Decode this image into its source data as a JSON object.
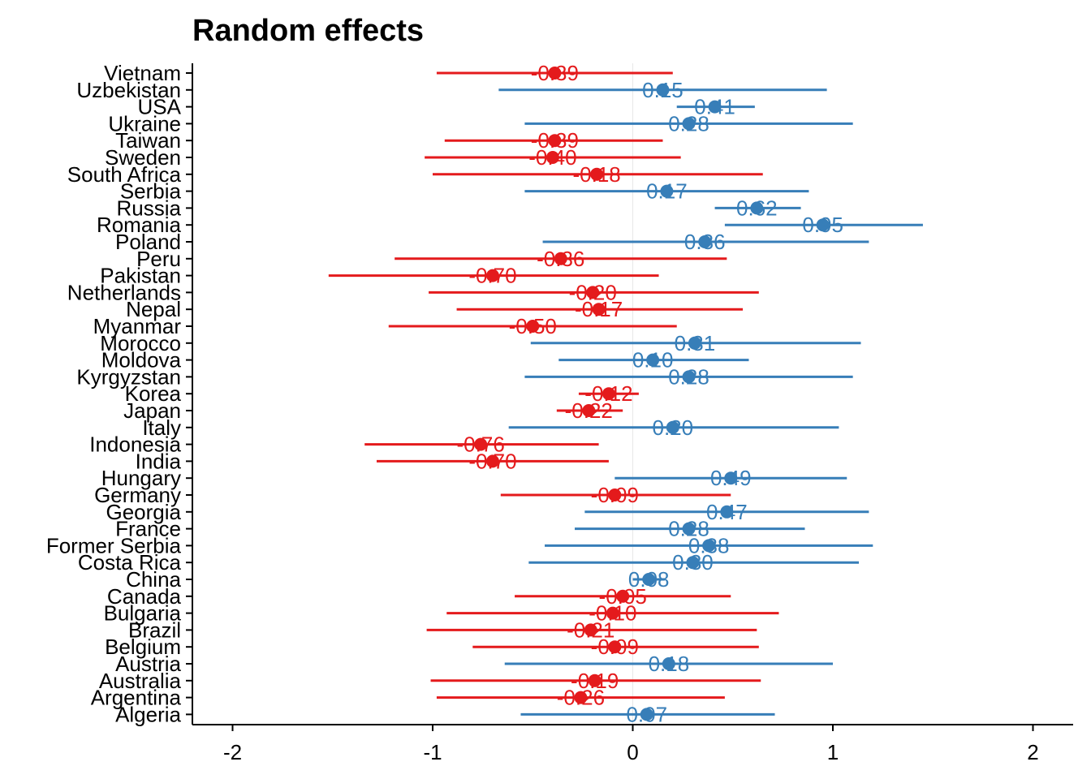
{
  "chart_data": {
    "type": "forest",
    "title": "Random effects",
    "xlabel": "",
    "ylabel": "",
    "xlim": [
      -2.2,
      2.2
    ],
    "x_ticks": [
      -2,
      -1,
      0,
      1,
      2
    ],
    "x_tick_labels": [
      "-2",
      "-1",
      "0",
      "1",
      "2"
    ],
    "colors": {
      "negative": "#e41a1c",
      "positive": "#377eb8",
      "zero_line": "#e8e8e8",
      "axis": "#000000"
    },
    "rows": [
      {
        "country": "Vietnam",
        "estimate": -0.39,
        "lower": -0.98,
        "upper": 0.2,
        "label": "-0.39"
      },
      {
        "country": "Uzbekistan",
        "estimate": 0.15,
        "lower": -0.67,
        "upper": 0.97,
        "label": "0.15"
      },
      {
        "country": "USA",
        "estimate": 0.41,
        "lower": 0.22,
        "upper": 0.61,
        "label": "0.41"
      },
      {
        "country": "Ukraine",
        "estimate": 0.28,
        "lower": -0.54,
        "upper": 1.1,
        "label": "0.28"
      },
      {
        "country": "Taiwan",
        "estimate": -0.39,
        "lower": -0.94,
        "upper": 0.15,
        "label": "-0.39"
      },
      {
        "country": "Sweden",
        "estimate": -0.4,
        "lower": -1.04,
        "upper": 0.24,
        "label": "-0.40"
      },
      {
        "country": "South Africa",
        "estimate": -0.18,
        "lower": -1.0,
        "upper": 0.65,
        "label": "-0.18"
      },
      {
        "country": "Serbia",
        "estimate": 0.17,
        "lower": -0.54,
        "upper": 0.88,
        "label": "0.17"
      },
      {
        "country": "Russia",
        "estimate": 0.62,
        "lower": 0.41,
        "upper": 0.84,
        "label": "0.62"
      },
      {
        "country": "Romania",
        "estimate": 0.95,
        "lower": 0.46,
        "upper": 1.45,
        "label": "0.95"
      },
      {
        "country": "Poland",
        "estimate": 0.36,
        "lower": -0.45,
        "upper": 1.18,
        "label": "0.36"
      },
      {
        "country": "Peru",
        "estimate": -0.36,
        "lower": -1.19,
        "upper": 0.47,
        "label": "-0.36"
      },
      {
        "country": "Pakistan",
        "estimate": -0.7,
        "lower": -1.52,
        "upper": 0.13,
        "label": "-0.70"
      },
      {
        "country": "Netherlands",
        "estimate": -0.2,
        "lower": -1.02,
        "upper": 0.63,
        "label": "-0.20"
      },
      {
        "country": "Nepal",
        "estimate": -0.17,
        "lower": -0.88,
        "upper": 0.55,
        "label": "-0.17"
      },
      {
        "country": "Myanmar",
        "estimate": -0.5,
        "lower": -1.22,
        "upper": 0.22,
        "label": "-0.50"
      },
      {
        "country": "Morocco",
        "estimate": 0.31,
        "lower": -0.51,
        "upper": 1.14,
        "label": "0.31"
      },
      {
        "country": "Moldova",
        "estimate": 0.1,
        "lower": -0.37,
        "upper": 0.58,
        "label": "0.10"
      },
      {
        "country": "Kyrgyzstan",
        "estimate": 0.28,
        "lower": -0.54,
        "upper": 1.1,
        "label": "0.28"
      },
      {
        "country": "Korea",
        "estimate": -0.12,
        "lower": -0.27,
        "upper": 0.03,
        "label": "-0.12"
      },
      {
        "country": "Japan",
        "estimate": -0.22,
        "lower": -0.38,
        "upper": -0.05,
        "label": "-0.22"
      },
      {
        "country": "Italy",
        "estimate": 0.2,
        "lower": -0.62,
        "upper": 1.03,
        "label": "0.20"
      },
      {
        "country": "Indonesia",
        "estimate": -0.76,
        "lower": -1.34,
        "upper": -0.17,
        "label": "-0.76"
      },
      {
        "country": "India",
        "estimate": -0.7,
        "lower": -1.28,
        "upper": -0.12,
        "label": "-0.70"
      },
      {
        "country": "Hungary",
        "estimate": 0.49,
        "lower": -0.09,
        "upper": 1.07,
        "label": "0.49"
      },
      {
        "country": "Germany",
        "estimate": -0.09,
        "lower": -0.66,
        "upper": 0.49,
        "label": "-0.09"
      },
      {
        "country": "Georgia",
        "estimate": 0.47,
        "lower": -0.24,
        "upper": 1.18,
        "label": "0.47"
      },
      {
        "country": "France",
        "estimate": 0.28,
        "lower": -0.29,
        "upper": 0.86,
        "label": "0.28"
      },
      {
        "country": "Former Serbia",
        "estimate": 0.38,
        "lower": -0.44,
        "upper": 1.2,
        "label": "0.38"
      },
      {
        "country": "Costa Rica",
        "estimate": 0.3,
        "lower": -0.52,
        "upper": 1.13,
        "label": "0.30"
      },
      {
        "country": "China",
        "estimate": 0.08,
        "lower": 0.0,
        "upper": 0.16,
        "label": "0.08"
      },
      {
        "country": "Canada",
        "estimate": -0.05,
        "lower": -0.59,
        "upper": 0.49,
        "label": "-0.05"
      },
      {
        "country": "Bulgaria",
        "estimate": -0.1,
        "lower": -0.93,
        "upper": 0.73,
        "label": "-0.10"
      },
      {
        "country": "Brazil",
        "estimate": -0.21,
        "lower": -1.03,
        "upper": 0.62,
        "label": "-0.21"
      },
      {
        "country": "Belgium",
        "estimate": -0.09,
        "lower": -0.8,
        "upper": 0.63,
        "label": "-0.09"
      },
      {
        "country": "Austria",
        "estimate": 0.18,
        "lower": -0.64,
        "upper": 1.0,
        "label": "0.18"
      },
      {
        "country": "Australia",
        "estimate": -0.19,
        "lower": -1.01,
        "upper": 0.64,
        "label": "-0.19"
      },
      {
        "country": "Argentina",
        "estimate": -0.26,
        "lower": -0.98,
        "upper": 0.46,
        "label": "-0.26"
      },
      {
        "country": "Algeria",
        "estimate": 0.07,
        "lower": -0.56,
        "upper": 0.71,
        "label": "0.07"
      }
    ]
  }
}
